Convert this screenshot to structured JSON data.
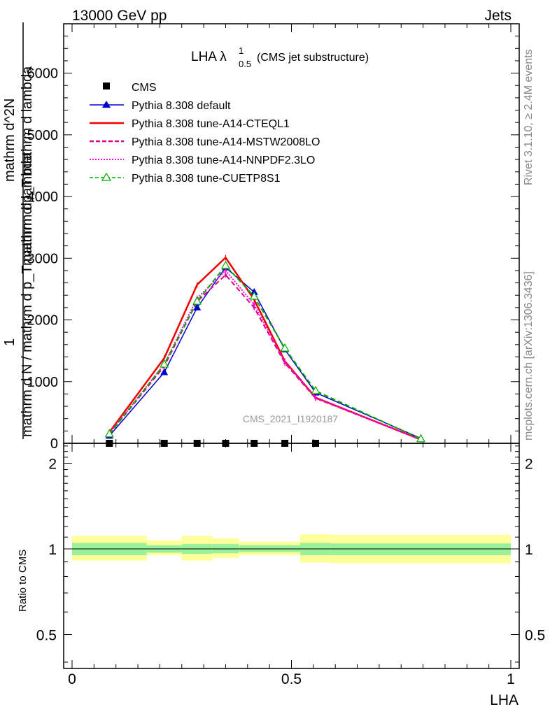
{
  "header": {
    "left": "13000 GeV pp",
    "right": "Jets"
  },
  "side_labels": {
    "rivet": "Rivet 3.1.10, ≥ 2.4M events",
    "mcplots": "mcplots.cern.ch [arXiv:1306.3436]"
  },
  "watermark": "CMS_2021_I1920187",
  "chart_data": [
    {
      "type": "line",
      "title": {
        "main": "LHA λ",
        "superscript": "1",
        "subscript": "0.5",
        "suffix": "(CMS jet substructure)"
      },
      "ylabel": {
        "numerator": "1",
        "denominator": "mathrm d N / mathrm d p_T mathrm d lambda",
        "numerator2": "mathrm d^2N",
        "denominator2": "mathrm d p_T mathrm d lambda"
      },
      "xlim": [
        0,
        1
      ],
      "ylim": [
        0,
        6800
      ],
      "yticks": [
        0,
        1000,
        2000,
        3000,
        4000,
        5000,
        6000
      ],
      "ytick_labels": [
        "0",
        "1000",
        "2000",
        "3000",
        "4000",
        "5000",
        "6000"
      ],
      "data_series": {
        "name": "CMS",
        "x": [
          0.085,
          0.21,
          0.285,
          0.35,
          0.415,
          0.485,
          0.555
        ],
        "y": [
          0,
          0,
          0,
          0,
          0,
          0,
          0
        ]
      },
      "series": [
        {
          "name": "Pythia 8.308 default",
          "color": "#0000cc",
          "style": "solid",
          "marker": "triangle-filled",
          "x": [
            0.085,
            0.21,
            0.285,
            0.35,
            0.415,
            0.485,
            0.555,
            0.795
          ],
          "y": [
            120,
            1150,
            2200,
            2850,
            2450,
            1520,
            820,
            80
          ]
        },
        {
          "name": "Pythia 8.308 tune-A14-CTEQL1",
          "color": "#ee0000",
          "style": "solid",
          "marker": "none",
          "x": [
            0.085,
            0.21,
            0.285,
            0.35,
            0.415,
            0.485,
            0.555,
            0.795
          ],
          "y": [
            180,
            1380,
            2570,
            3010,
            2330,
            1330,
            740,
            60
          ]
        },
        {
          "name": "Pythia 8.308 tune-A14-MSTW2008LO",
          "color": "#dd0088",
          "style": "dashed",
          "marker": "small",
          "x": [
            0.085,
            0.21,
            0.285,
            0.35,
            0.415,
            0.485,
            0.555,
            0.795
          ],
          "y": [
            150,
            1250,
            2300,
            2730,
            2200,
            1300,
            730,
            60
          ]
        },
        {
          "name": "Pythia 8.308 tune-A14-NNPDF2.3LO",
          "color": "#ff00dd",
          "style": "dotted",
          "marker": "small",
          "x": [
            0.085,
            0.21,
            0.285,
            0.35,
            0.415,
            0.485,
            0.555,
            0.795
          ],
          "y": [
            160,
            1280,
            2350,
            2800,
            2250,
            1320,
            740,
            60
          ]
        },
        {
          "name": "Pythia 8.308 tune-CUETP8S1",
          "color": "#00aa00",
          "style": "dashed",
          "marker": "triangle-open",
          "x": [
            0.085,
            0.21,
            0.285,
            0.35,
            0.415,
            0.485,
            0.555,
            0.795
          ],
          "y": [
            150,
            1280,
            2300,
            2880,
            2380,
            1540,
            850,
            70
          ]
        }
      ]
    },
    {
      "type": "area",
      "ylabel": "Ratio to CMS",
      "xlabel": "LHA",
      "xlim": [
        0,
        1
      ],
      "ylim": [
        0.38,
        2.35
      ],
      "log_y": true,
      "yticks": [
        0.5,
        1,
        2
      ],
      "ytick_labels": [
        "0.5",
        "1",
        "2"
      ],
      "xticks": [
        0,
        0.5,
        1
      ],
      "xtick_labels": [
        "0",
        "0.5",
        "1"
      ],
      "bins": [
        {
          "lo": 0.0,
          "hi": 0.17,
          "inner": [
            0.95,
            1.05
          ],
          "outer": [
            0.91,
            1.11
          ]
        },
        {
          "lo": 0.17,
          "hi": 0.25,
          "inner": [
            0.97,
            1.03
          ],
          "outer": [
            0.95,
            1.07
          ]
        },
        {
          "lo": 0.25,
          "hi": 0.32,
          "inner": [
            0.96,
            1.04
          ],
          "outer": [
            0.91,
            1.11
          ]
        },
        {
          "lo": 0.32,
          "hi": 0.38,
          "inner": [
            0.965,
            1.04
          ],
          "outer": [
            0.93,
            1.09
          ]
        },
        {
          "lo": 0.38,
          "hi": 0.52,
          "inner": [
            0.975,
            1.03
          ],
          "outer": [
            0.95,
            1.06
          ]
        },
        {
          "lo": 0.52,
          "hi": 0.59,
          "inner": [
            0.95,
            1.05
          ],
          "outer": [
            0.895,
            1.125
          ]
        },
        {
          "lo": 0.59,
          "hi": 1.0,
          "inner": [
            0.95,
            1.045
          ],
          "outer": [
            0.89,
            1.12
          ]
        }
      ],
      "colors": {
        "inner": "#99f299",
        "outer": "#ffff99"
      }
    }
  ]
}
